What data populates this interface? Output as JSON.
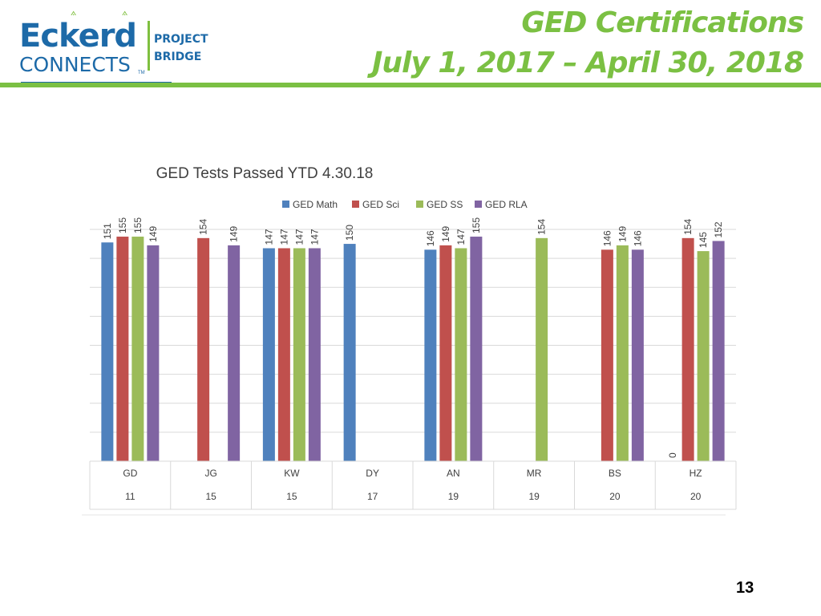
{
  "header": {
    "logo": {
      "line1": "Eckerd",
      "line2": "CONNECTS",
      "tm": "TM",
      "project_line1": "PROJECT",
      "project_line2": "BRIDGE"
    },
    "title_line1": "GED Certifications",
    "title_line2": "July 1, 2017 – April 30, 2018"
  },
  "colors": {
    "accent": "#7bc043",
    "brand": "#1d6aa8",
    "math": "#4f81bd",
    "sci": "#c0504d",
    "ss": "#9bbb59",
    "rla": "#8064a2"
  },
  "chart_data": {
    "type": "bar",
    "title": "GED Tests Passed YTD 4.30.18",
    "legend_position": "top",
    "grid": true,
    "ylim": [
      0,
      160
    ],
    "categories": [
      "GD",
      "JG",
      "KW",
      "DY",
      "AN",
      "MR",
      "BS",
      "HZ"
    ],
    "category_sublabels": [
      "11",
      "15",
      "15",
      "17",
      "19",
      "19",
      "20",
      "20"
    ],
    "series": [
      {
        "name": "GED Math",
        "color": "#4f81bd",
        "values": [
          151,
          null,
          147,
          150,
          146,
          null,
          null,
          0
        ]
      },
      {
        "name": "GED Sci",
        "color": "#c0504d",
        "values": [
          155,
          154,
          147,
          null,
          149,
          null,
          146,
          154
        ]
      },
      {
        "name": "GED SS",
        "color": "#9bbb59",
        "values": [
          155,
          null,
          147,
          null,
          147,
          154,
          149,
          145
        ]
      },
      {
        "name": "GED RLA",
        "color": "#8064a2",
        "values": [
          149,
          149,
          147,
          null,
          155,
          null,
          146,
          152
        ]
      }
    ]
  },
  "page_number": "13"
}
